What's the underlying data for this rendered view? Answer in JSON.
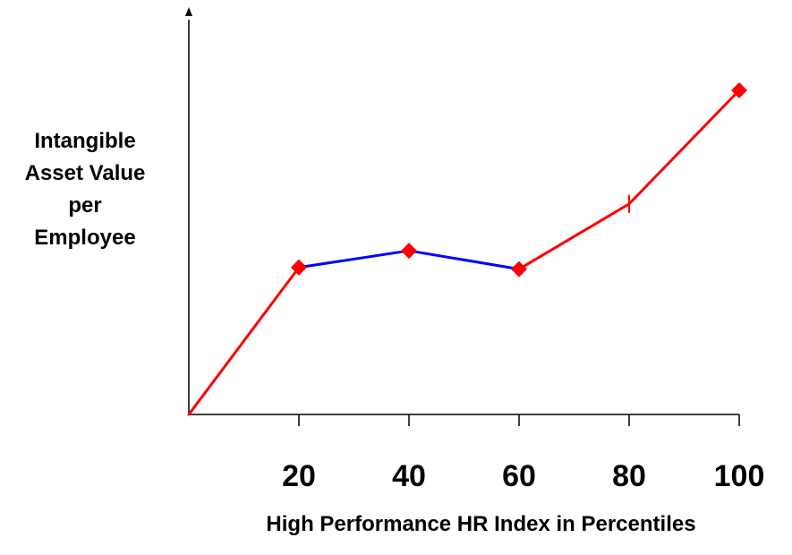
{
  "chart_data": {
    "type": "line",
    "x": [
      0,
      20,
      40,
      60,
      80,
      100
    ],
    "categories": [
      "20",
      "40",
      "60",
      "80",
      "100"
    ],
    "y": [
      0,
      44,
      49,
      43.5,
      63,
      97
    ],
    "markers": [
      20,
      40,
      60,
      100
    ],
    "segment_colors": [
      "#ff0000",
      "#0000ff",
      "#0000ff",
      "#ff0000",
      "#ff0000"
    ],
    "marker_color": "#ff0000",
    "xlim": [
      0,
      100
    ],
    "ylim": [
      0,
      120
    ],
    "ylabel_lines": [
      "Intangible",
      "Asset Value",
      "per",
      "Employee"
    ],
    "xlabel": "High Performance HR Index in Percentiles",
    "grid": false,
    "legend": "none"
  }
}
